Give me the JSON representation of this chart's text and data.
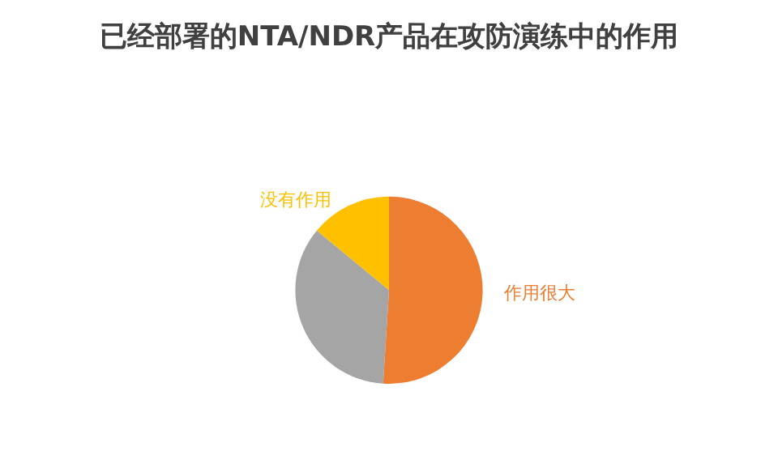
{
  "chart_data": {
    "type": "pie",
    "title": "已经部署的NTA/NDR产品在攻防演练中的作用",
    "categories": [
      "作用很大",
      null,
      "没有作用"
    ],
    "values": [
      51,
      35,
      14
    ],
    "colors": [
      "#ed7d31",
      "#a5a5a5",
      "#ffc000"
    ]
  }
}
